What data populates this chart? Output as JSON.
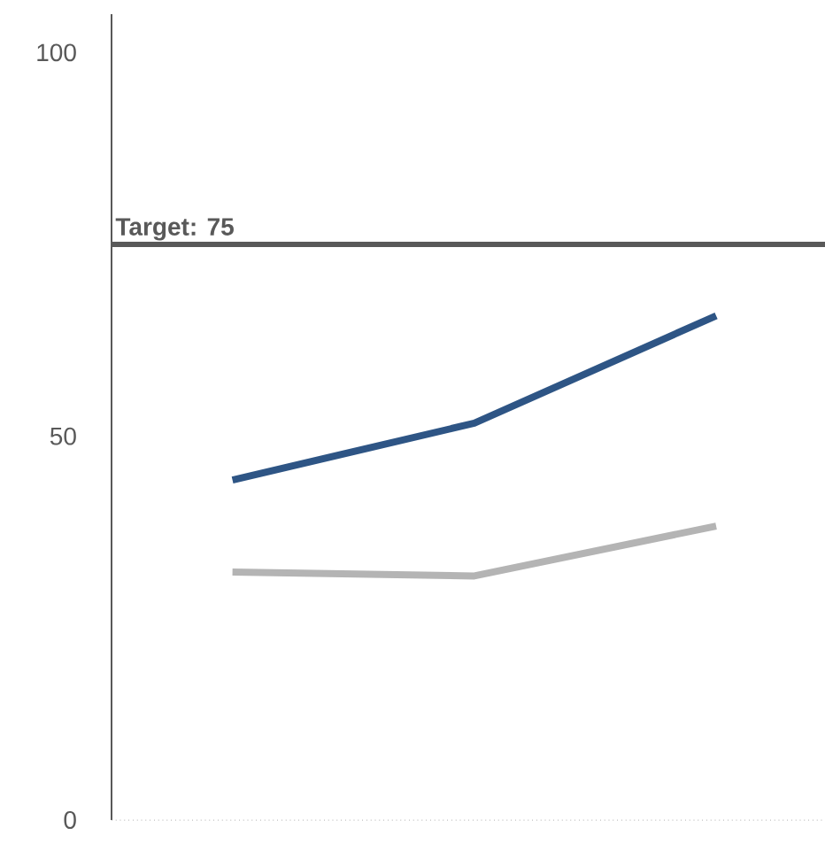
{
  "chart_data": {
    "type": "line",
    "categories": [
      null,
      null,
      null
    ],
    "series": [
      {
        "color": "#2e5585",
        "values": [
          44.3,
          51.7,
          65.7
        ]
      },
      {
        "color": "#b4b4b4",
        "values": [
          32.3,
          31.8,
          38.3
        ]
      }
    ],
    "ylim": [
      0,
      105
    ],
    "yticks": [
      0,
      50,
      100
    ],
    "ref_lines": [
      {
        "axis": "y",
        "value": 75,
        "label": "Target: 75",
        "color": "#595959",
        "line_style": "solid"
      }
    ],
    "grid": false,
    "marker": "none",
    "line_style": "solid"
  }
}
